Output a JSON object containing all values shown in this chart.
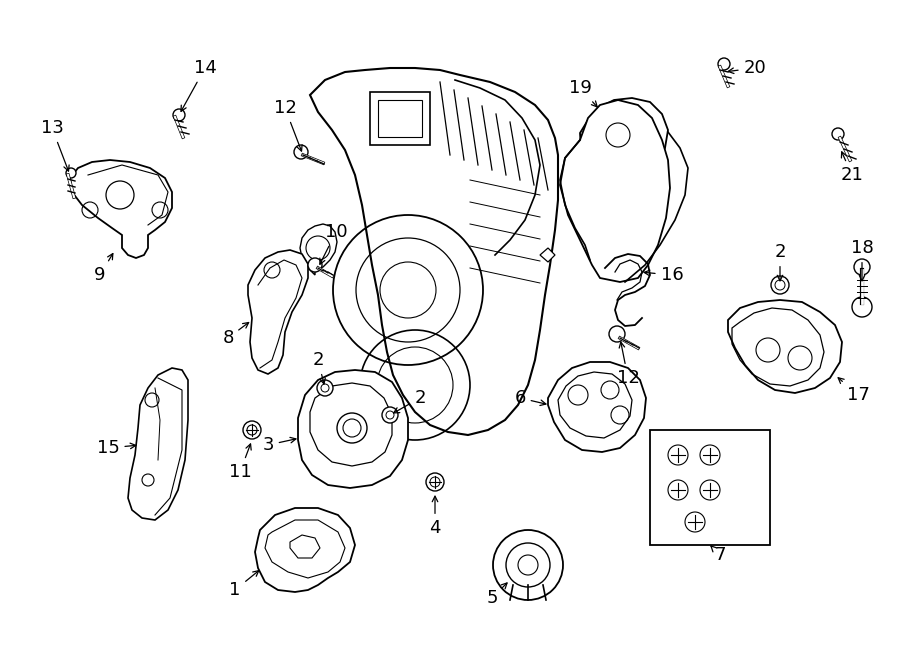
{
  "bg": "#ffffff",
  "fw": 9.0,
  "fh": 6.61,
  "dpi": 100,
  "lc": "#000000",
  "tc": "#000000",
  "fs": 13
}
